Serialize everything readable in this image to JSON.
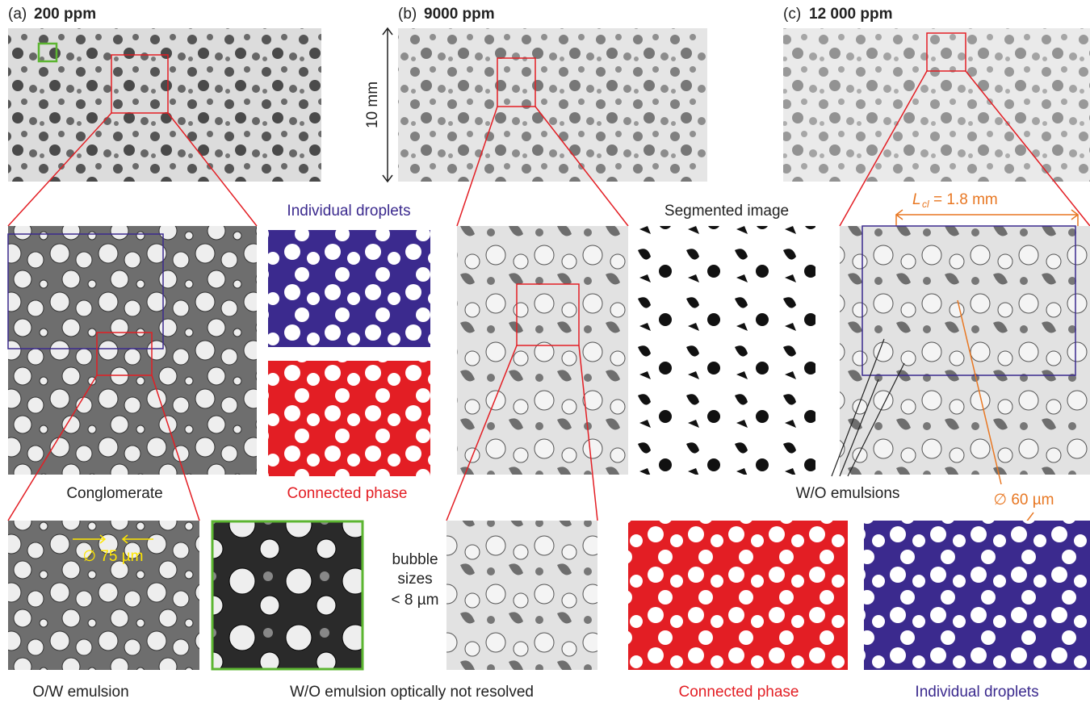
{
  "panels": {
    "a": {
      "letter": "(a)",
      "concentration": "200 ppm",
      "zoom_label": "Conglomerate",
      "top_right_label": "Individual droplets",
      "bottom_right_label": "Connected phase",
      "emulsion_label": "O/W emulsion",
      "size_label": "∅ 75 µm"
    },
    "b": {
      "letter": "(b)",
      "concentration": "9000 ppm",
      "scale": "10 mm",
      "segmented_label": "Segmented image",
      "bubble_note": [
        "bubble",
        "sizes",
        "< 8 µm"
      ],
      "unresolved_label": "W/O emulsion optically not resolved"
    },
    "c": {
      "letter": "(c)",
      "concentration": "12 000 ppm",
      "length_symbol": "L",
      "length_subscript": "cl",
      "length_value": " = 1.8 mm",
      "emulsions_label": "W/O emulsions",
      "size_label": "∅ 60 µm",
      "connected_label": "Connected phase",
      "droplets_label": "Individual droplets"
    }
  }
}
